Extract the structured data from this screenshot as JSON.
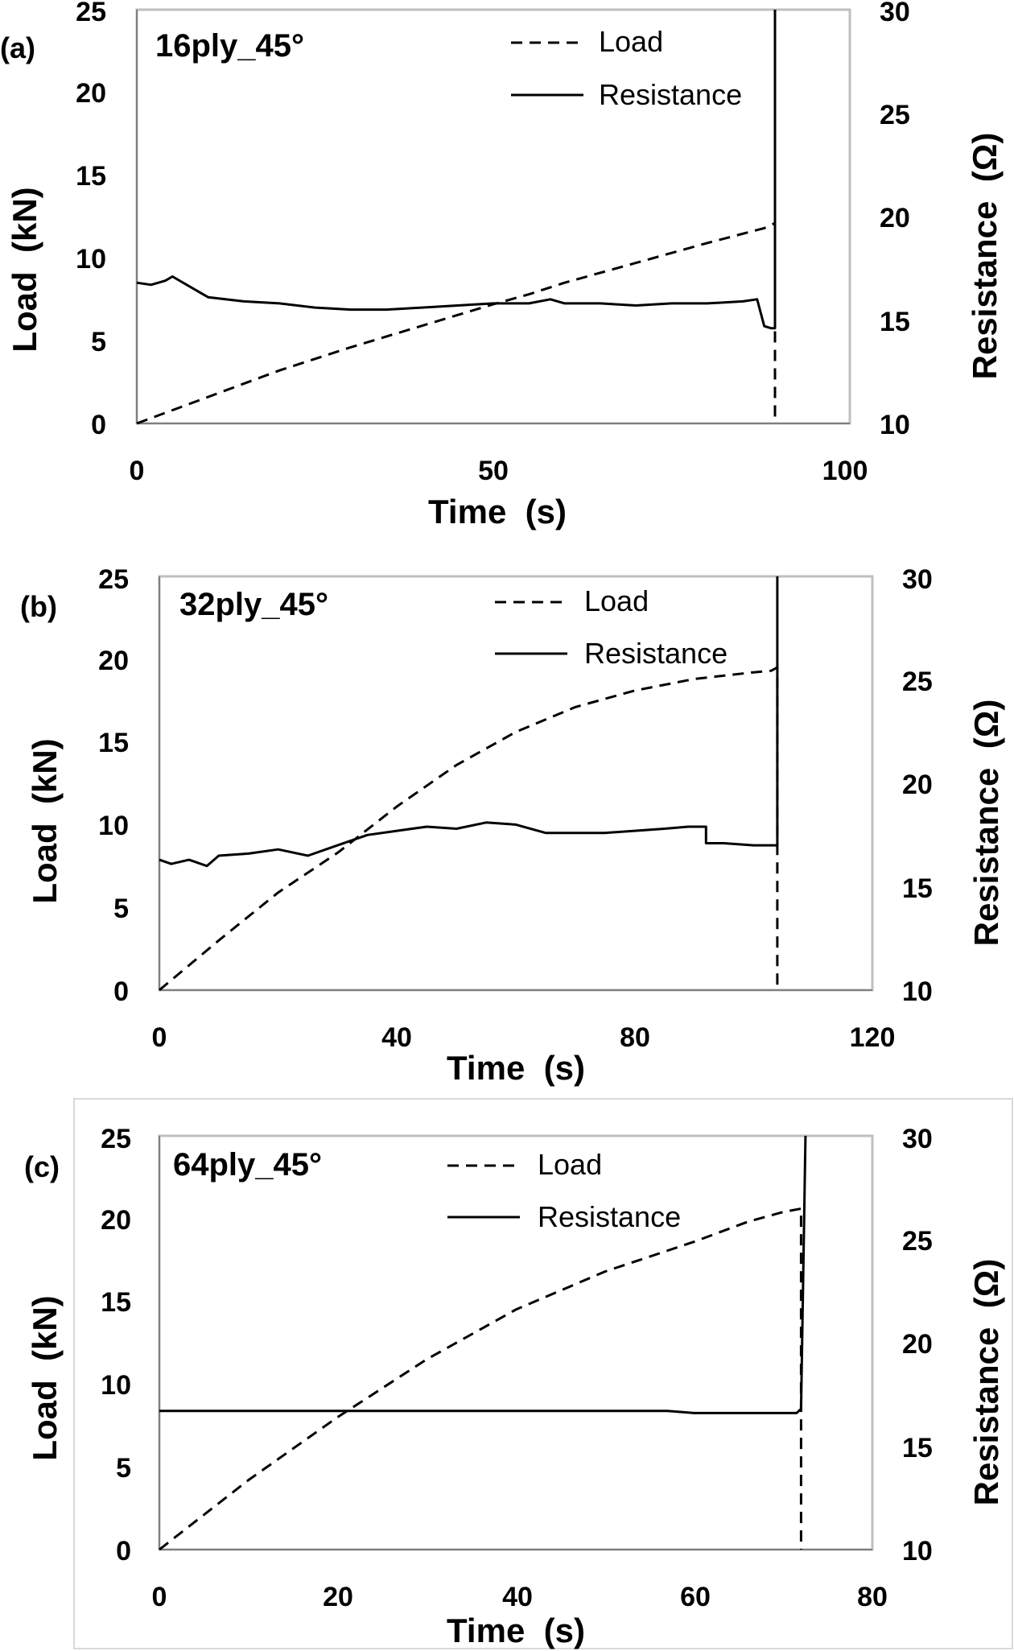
{
  "chart_data": [
    {
      "type": "line",
      "panel_label": "(a)",
      "title": "16ply_45°",
      "xlabel": "Time  (s)",
      "ylabel": "Load  (kN)",
      "y2label": "Resistance  (Ω)",
      "xlim": [
        0,
        100
      ],
      "ylim": [
        0,
        25
      ],
      "y2lim": [
        10,
        30
      ],
      "xticks": [
        "0",
        "50",
        "100"
      ],
      "yticks": [
        "0",
        "5",
        "10",
        "15",
        "20",
        "25"
      ],
      "y2ticks": [
        "10",
        "15",
        "20",
        "25",
        "30"
      ],
      "legend": [
        "Load",
        "Resistance"
      ],
      "series": [
        {
          "name": "Load",
          "style": "dashed",
          "axis": "left",
          "x": [
            0,
            10,
            20,
            30,
            40,
            50,
            55,
            60,
            70,
            80,
            88,
            89.5,
            89.5
          ],
          "y": [
            0,
            1.6,
            3.2,
            4.6,
            5.9,
            7.2,
            7.8,
            8.5,
            9.7,
            10.9,
            11.8,
            12.1,
            0
          ]
        },
        {
          "name": "Resistance",
          "style": "solid",
          "axis": "right",
          "x": [
            0,
            2,
            4,
            5,
            7,
            10,
            15,
            20,
            25,
            30,
            35,
            40,
            45,
            50,
            55,
            58,
            60,
            65,
            70,
            75,
            80,
            85,
            87,
            88,
            89,
            89.5,
            89.5
          ],
          "y": [
            16.8,
            16.7,
            16.9,
            17.1,
            16.7,
            16.1,
            15.9,
            15.8,
            15.6,
            15.5,
            15.5,
            15.6,
            15.7,
            15.8,
            15.8,
            16.0,
            15.8,
            15.8,
            15.7,
            15.8,
            15.8,
            15.9,
            16.0,
            14.7,
            14.6,
            14.6,
            30
          ]
        }
      ]
    },
    {
      "type": "line",
      "panel_label": "(b)",
      "title": "32ply_45°",
      "xlabel": "Time  (s)",
      "ylabel": "Load  (kN)",
      "y2label": "Resistance  (Ω)",
      "xlim": [
        0,
        120
      ],
      "ylim": [
        0,
        25
      ],
      "y2lim": [
        10,
        30
      ],
      "xticks": [
        "0",
        "40",
        "80",
        "120"
      ],
      "yticks": [
        "0",
        "5",
        "10",
        "15",
        "20",
        "25"
      ],
      "y2ticks": [
        "10",
        "15",
        "20",
        "25",
        "30"
      ],
      "legend": [
        "Load",
        "Resistance"
      ],
      "series": [
        {
          "name": "Load",
          "style": "dashed",
          "axis": "left",
          "x": [
            0,
            10,
            20,
            30,
            40,
            50,
            60,
            70,
            80,
            90,
            100,
            103,
            104,
            104
          ],
          "y": [
            0,
            3.0,
            5.9,
            8.3,
            11.1,
            13.6,
            15.6,
            17.1,
            18.1,
            18.8,
            19.2,
            19.3,
            19.5,
            0
          ]
        },
        {
          "name": "Resistance",
          "style": "solid",
          "axis": "right",
          "x": [
            0,
            2,
            5,
            8,
            10,
            15,
            20,
            25,
            30,
            35,
            40,
            45,
            50,
            55,
            60,
            65,
            70,
            75,
            80,
            85,
            89,
            92,
            92,
            95,
            100,
            103,
            104,
            104
          ],
          "y": [
            16.3,
            16.1,
            16.3,
            16.0,
            16.5,
            16.6,
            16.8,
            16.5,
            17.0,
            17.5,
            17.7,
            17.9,
            17.8,
            18.1,
            18.0,
            17.6,
            17.6,
            17.6,
            17.7,
            17.8,
            17.9,
            17.9,
            17.1,
            17.1,
            17.0,
            17.0,
            17.0,
            30
          ]
        }
      ]
    },
    {
      "type": "line",
      "panel_label": "(c)",
      "title": "64ply_45°",
      "xlabel": "Time  (s)",
      "ylabel": "Load  (kN)",
      "y2label": "Resistance  (Ω)",
      "xlim": [
        0,
        80
      ],
      "ylim": [
        0,
        25
      ],
      "y2lim": [
        10,
        30
      ],
      "xticks": [
        "0",
        "20",
        "40",
        "60",
        "80"
      ],
      "yticks": [
        "0",
        "5",
        "10",
        "15",
        "20",
        "25"
      ],
      "y2ticks": [
        "10",
        "15",
        "20",
        "25",
        "30"
      ],
      "legend": [
        "Load",
        "Resistance"
      ],
      "series": [
        {
          "name": "Load",
          "style": "dashed",
          "axis": "left",
          "x": [
            0,
            10,
            20,
            30,
            40,
            50,
            60,
            66,
            70,
            72,
            72,
            72
          ],
          "y": [
            0,
            4.2,
            8.0,
            11.5,
            14.5,
            16.8,
            18.6,
            19.8,
            20.4,
            20.6,
            0,
            0
          ]
        },
        {
          "name": "Resistance",
          "style": "solid",
          "axis": "right",
          "x": [
            0,
            10,
            20,
            30,
            40,
            50,
            57,
            60,
            70,
            71.5,
            72,
            72.5
          ],
          "y": [
            16.7,
            16.7,
            16.7,
            16.7,
            16.7,
            16.7,
            16.7,
            16.6,
            16.6,
            16.6,
            16.8,
            30
          ]
        }
      ]
    }
  ]
}
